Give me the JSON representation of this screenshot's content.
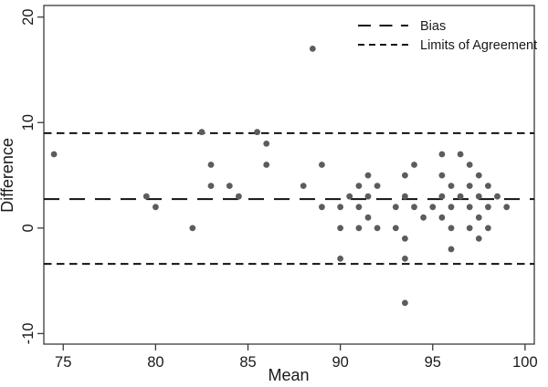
{
  "figure": {
    "background": "#ffffff",
    "border_color": "#3a3a3a",
    "line_color": "#111111",
    "point_color": "#5c5c5c",
    "text_color": "#1a1a1a"
  },
  "chart_data": {
    "type": "scatter",
    "title": "",
    "xlabel": "Mean",
    "ylabel": "Difference",
    "xlim": [
      73.95,
      100.5
    ],
    "ylim": [
      -11,
      21.1
    ],
    "xticks": [
      75,
      80,
      85,
      90,
      95,
      100
    ],
    "yticks": [
      20,
      10,
      0,
      -10
    ],
    "ytick_angle": 90,
    "grid": false,
    "legend": {
      "position": "top-right",
      "entries": [
        {
          "label": "Bias",
          "dash": "long"
        },
        {
          "label": "Limits of Agreement",
          "dash": "short"
        }
      ]
    },
    "lines": [
      {
        "name": "bias-line",
        "y": 2.75,
        "dash": "long"
      },
      {
        "name": "upper-limit-line",
        "y": 9.0,
        "dash": "short"
      },
      {
        "name": "lower-limit-line",
        "y": -3.4,
        "dash": "short"
      }
    ],
    "points": [
      [
        74.5,
        7
      ],
      [
        79.5,
        3
      ],
      [
        80,
        2
      ],
      [
        82,
        0
      ],
      [
        82.5,
        9.1
      ],
      [
        83,
        6
      ],
      [
        83,
        4
      ],
      [
        84,
        4
      ],
      [
        84.5,
        3
      ],
      [
        85.5,
        9.1
      ],
      [
        86,
        8
      ],
      [
        86,
        6
      ],
      [
        88,
        4
      ],
      [
        88.5,
        17
      ],
      [
        89,
        6
      ],
      [
        89,
        2
      ],
      [
        90,
        2
      ],
      [
        90,
        0
      ],
      [
        90,
        -2.9
      ],
      [
        90.5,
        3
      ],
      [
        91,
        4
      ],
      [
        91,
        2
      ],
      [
        91,
        0
      ],
      [
        91.5,
        5
      ],
      [
        91.5,
        3
      ],
      [
        91.5,
        1
      ],
      [
        92,
        4
      ],
      [
        92,
        0
      ],
      [
        93,
        2
      ],
      [
        93,
        0
      ],
      [
        93.5,
        5
      ],
      [
        93.5,
        3
      ],
      [
        93.5,
        -1
      ],
      [
        93.5,
        -2.9
      ],
      [
        93.5,
        -7.1
      ],
      [
        94,
        6
      ],
      [
        94,
        2
      ],
      [
        94.5,
        1
      ],
      [
        95,
        2
      ],
      [
        95.5,
        7
      ],
      [
        95.5,
        5
      ],
      [
        95.5,
        3
      ],
      [
        95.5,
        1
      ],
      [
        96,
        4
      ],
      [
        96,
        2
      ],
      [
        96,
        0
      ],
      [
        96,
        -2
      ],
      [
        96.5,
        7
      ],
      [
        96.5,
        3
      ],
      [
        97,
        6
      ],
      [
        97,
        4
      ],
      [
        97,
        2
      ],
      [
        97,
        0
      ],
      [
        97.5,
        5
      ],
      [
        97.5,
        3
      ],
      [
        97.5,
        1
      ],
      [
        97.5,
        -1
      ],
      [
        98,
        4
      ],
      [
        98,
        2
      ],
      [
        98,
        0
      ],
      [
        98.5,
        3
      ],
      [
        99,
        2
      ]
    ]
  }
}
